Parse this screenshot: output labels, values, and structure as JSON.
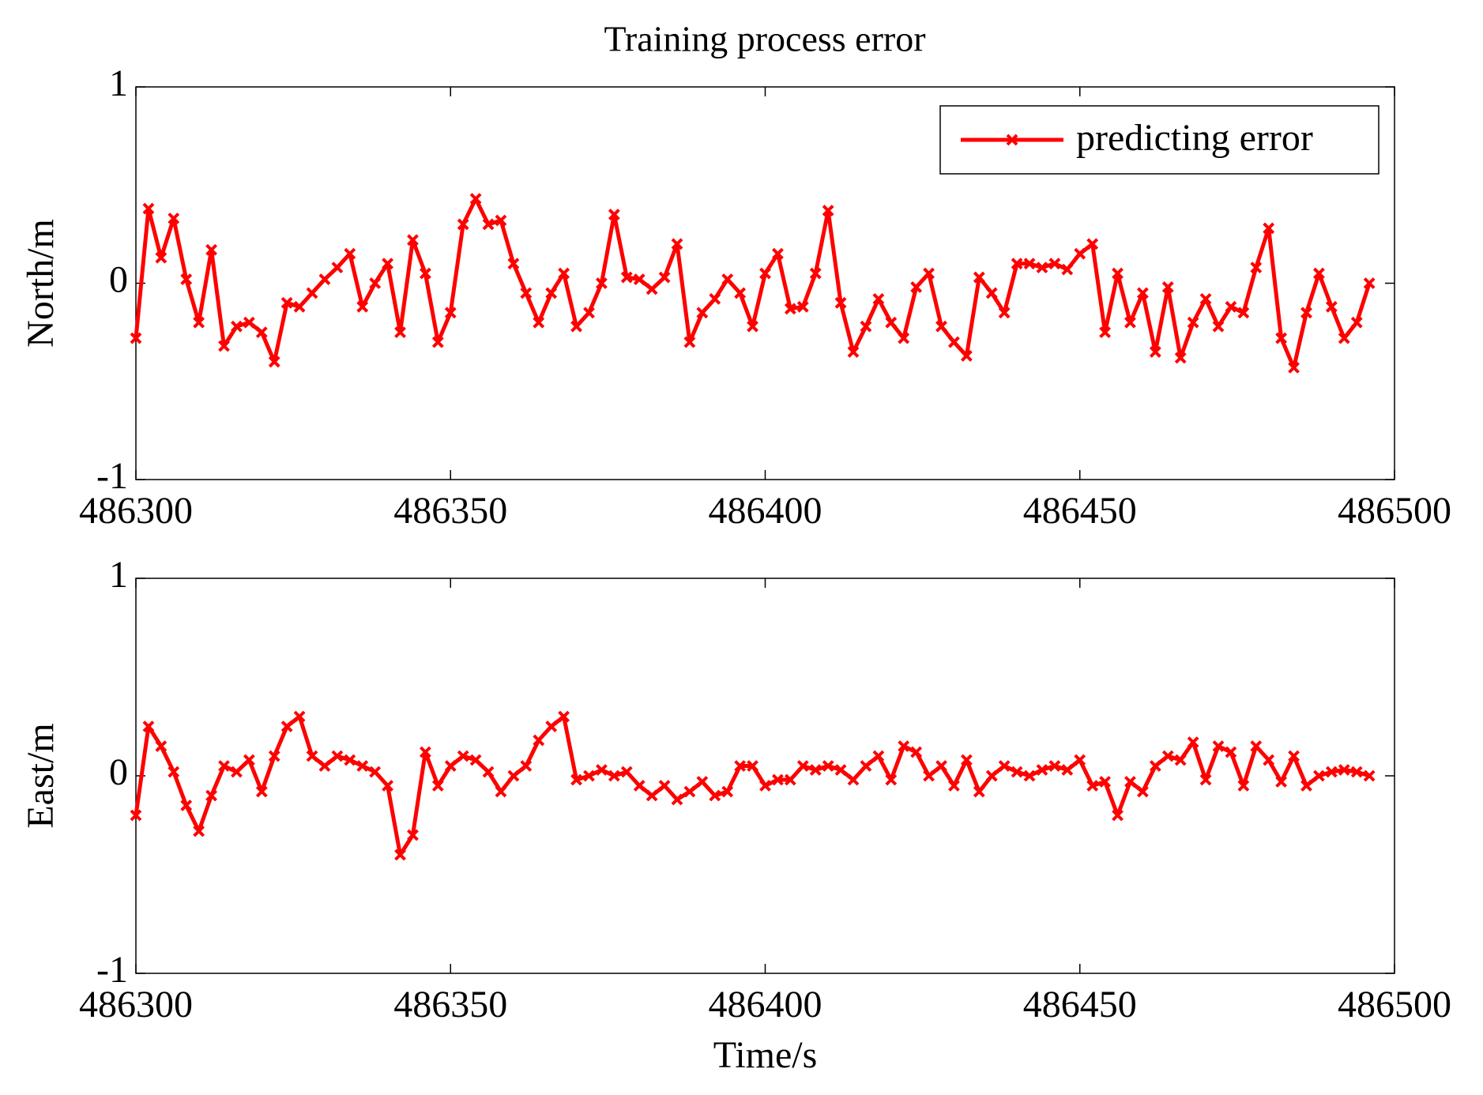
{
  "chart_data": [
    {
      "type": "line",
      "title": "Training process error",
      "ylabel": "North/m",
      "x": [
        486300,
        486302,
        486304,
        486306,
        486308,
        486310,
        486312,
        486314,
        486316,
        486318,
        486320,
        486322,
        486324,
        486326,
        486328,
        486330,
        486332,
        486334,
        486336,
        486338,
        486340,
        486342,
        486344,
        486346,
        486348,
        486350,
        486352,
        486354,
        486356,
        486358,
        486360,
        486362,
        486364,
        486366,
        486368,
        486370,
        486372,
        486374,
        486376,
        486378,
        486380,
        486382,
        486384,
        486386,
        486388,
        486390,
        486392,
        486394,
        486396,
        486398,
        486400,
        486402,
        486404,
        486406,
        486408,
        486410,
        486412,
        486414,
        486416,
        486418,
        486420,
        486422,
        486424,
        486426,
        486428,
        486430,
        486432,
        486434,
        486436,
        486438,
        486440,
        486442,
        486444,
        486446,
        486448,
        486450,
        486452,
        486454,
        486456,
        486458,
        486460,
        486462,
        486464,
        486466,
        486468,
        486470,
        486472,
        486474,
        486476,
        486478,
        486480,
        486482,
        486484,
        486486,
        486488,
        486490,
        486492,
        486494,
        486496
      ],
      "series": [
        {
          "name": "predicting error",
          "color": "#ff0000",
          "values": [
            -0.28,
            0.38,
            0.13,
            0.33,
            0.02,
            -0.2,
            0.17,
            -0.32,
            -0.22,
            -0.2,
            -0.25,
            -0.4,
            -0.1,
            -0.12,
            -0.05,
            0.02,
            0.08,
            0.15,
            -0.12,
            0.0,
            0.1,
            -0.25,
            0.22,
            0.05,
            -0.3,
            -0.15,
            0.3,
            0.43,
            0.3,
            0.32,
            0.1,
            -0.05,
            -0.2,
            -0.05,
            0.05,
            -0.22,
            -0.15,
            0.0,
            0.35,
            0.03,
            0.02,
            -0.03,
            0.03,
            0.2,
            -0.3,
            -0.15,
            -0.08,
            0.02,
            -0.05,
            -0.22,
            0.05,
            0.15,
            -0.13,
            -0.12,
            0.05,
            0.37,
            -0.1,
            -0.35,
            -0.22,
            -0.08,
            -0.2,
            -0.28,
            -0.02,
            0.05,
            -0.22,
            -0.3,
            -0.37,
            0.03,
            -0.05,
            -0.15,
            0.1,
            0.1,
            0.08,
            0.1,
            0.07,
            0.15,
            0.2,
            -0.25,
            0.05,
            -0.2,
            -0.05,
            -0.35,
            -0.02,
            -0.38,
            -0.2,
            -0.08,
            -0.22,
            -0.12,
            -0.15,
            0.08,
            0.28,
            -0.28,
            -0.43,
            -0.15,
            0.05,
            -0.12,
            -0.28,
            -0.2,
            0.0
          ]
        }
      ],
      "xlim": [
        486300,
        486500
      ],
      "ylim": [
        -1,
        1
      ],
      "xticks": [
        486300,
        486350,
        486400,
        486450,
        486500
      ],
      "yticks": [
        -1,
        0,
        1
      ],
      "legend": "upper right"
    },
    {
      "type": "line",
      "ylabel": "East/m",
      "xlabel": "Time/s",
      "x": [
        486300,
        486302,
        486304,
        486306,
        486308,
        486310,
        486312,
        486314,
        486316,
        486318,
        486320,
        486322,
        486324,
        486326,
        486328,
        486330,
        486332,
        486334,
        486336,
        486338,
        486340,
        486342,
        486344,
        486346,
        486348,
        486350,
        486352,
        486354,
        486356,
        486358,
        486360,
        486362,
        486364,
        486366,
        486368,
        486370,
        486372,
        486374,
        486376,
        486378,
        486380,
        486382,
        486384,
        486386,
        486388,
        486390,
        486392,
        486394,
        486396,
        486398,
        486400,
        486402,
        486404,
        486406,
        486408,
        486410,
        486412,
        486414,
        486416,
        486418,
        486420,
        486422,
        486424,
        486426,
        486428,
        486430,
        486432,
        486434,
        486436,
        486438,
        486440,
        486442,
        486444,
        486446,
        486448,
        486450,
        486452,
        486454,
        486456,
        486458,
        486460,
        486462,
        486464,
        486466,
        486468,
        486470,
        486472,
        486474,
        486476,
        486478,
        486480,
        486482,
        486484,
        486486,
        486488,
        486490,
        486492,
        486494,
        486496
      ],
      "series": [
        {
          "color": "#ff0000",
          "values": [
            -0.2,
            0.25,
            0.15,
            0.02,
            -0.15,
            -0.28,
            -0.1,
            0.05,
            0.02,
            0.08,
            -0.08,
            0.1,
            0.25,
            0.3,
            0.1,
            0.05,
            0.1,
            0.08,
            0.05,
            0.02,
            -0.05,
            -0.4,
            -0.3,
            0.12,
            -0.05,
            0.05,
            0.1,
            0.08,
            0.02,
            -0.08,
            0.0,
            0.05,
            0.18,
            0.25,
            0.3,
            -0.02,
            0.0,
            0.03,
            0.0,
            0.02,
            -0.05,
            -0.1,
            -0.05,
            -0.12,
            -0.08,
            -0.03,
            -0.1,
            -0.08,
            0.05,
            0.05,
            -0.05,
            -0.02,
            -0.02,
            0.05,
            0.03,
            0.05,
            0.03,
            -0.02,
            0.05,
            0.1,
            -0.02,
            0.15,
            0.12,
            0.0,
            0.05,
            -0.05,
            0.08,
            -0.08,
            0.0,
            0.05,
            0.02,
            0.0,
            0.03,
            0.05,
            0.03,
            0.08,
            -0.05,
            -0.03,
            -0.2,
            -0.03,
            -0.08,
            0.05,
            0.1,
            0.08,
            0.17,
            -0.02,
            0.15,
            0.12,
            -0.05,
            0.15,
            0.08,
            -0.03,
            0.1,
            -0.05,
            0.0,
            0.02,
            0.03,
            0.02,
            0.0
          ]
        }
      ],
      "xlim": [
        486300,
        486500
      ],
      "ylim": [
        -1,
        1
      ],
      "xticks": [
        486300,
        486350,
        486400,
        486450,
        486500
      ],
      "yticks": [
        -1,
        0,
        1
      ]
    }
  ]
}
